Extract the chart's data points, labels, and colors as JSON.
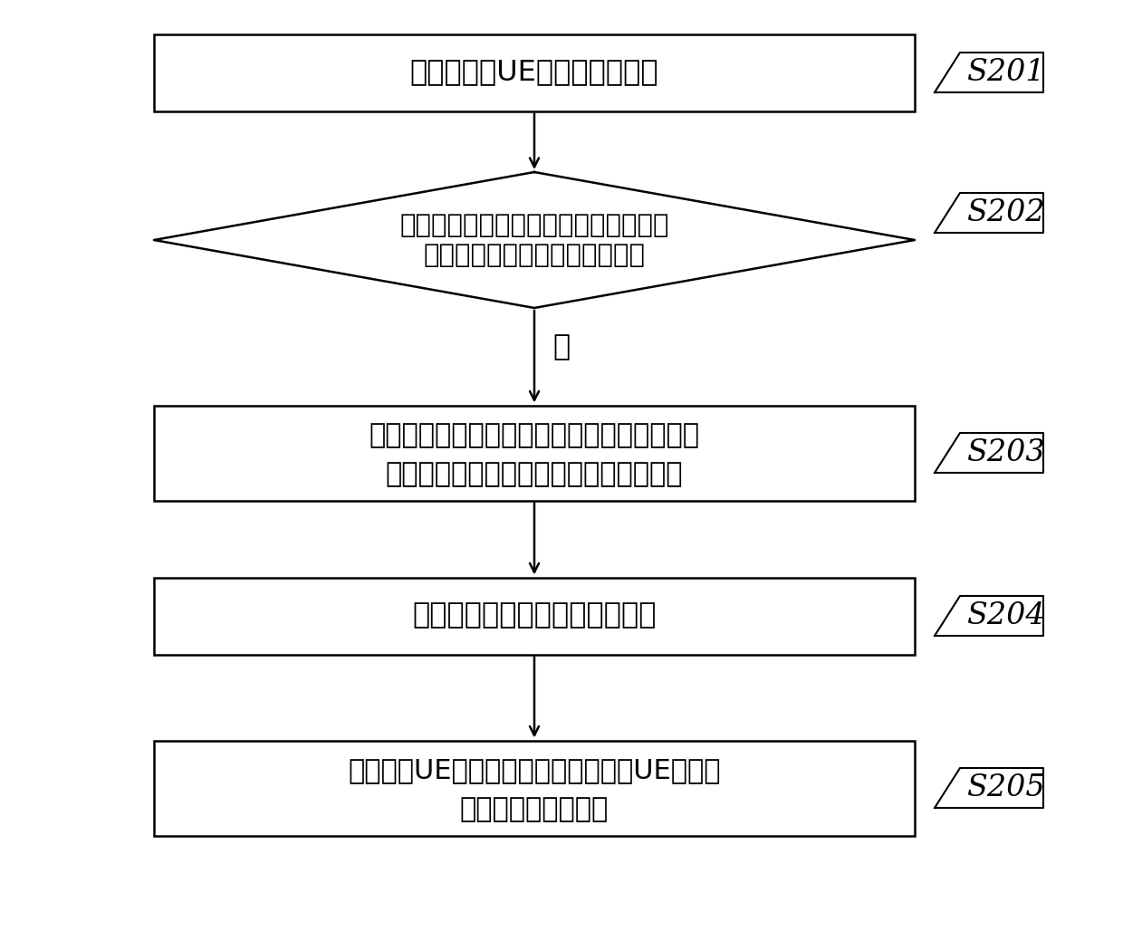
{
  "bg_color": "#ffffff",
  "line_color": "#000000",
  "font_color": "#000000",
  "steps": [
    {
      "id": "S201",
      "type": "rect",
      "line1": "微基站接收UE上报的测量信息",
      "line2": ""
    },
    {
      "id": "S202",
      "type": "diamond",
      "line1": "微基站判断实际测量信息集合中是否存",
      "line2": "在实际测量信息与测量信息匹配"
    },
    {
      "id": "S203",
      "type": "rect",
      "line1": "微基站根据测量信息，或与测量信息匹配的实",
      "line2": "际测量信息，从邻近小区中确定目标小区"
    },
    {
      "id": "S204",
      "type": "rect",
      "line1": "微基站与目标基站进行切换协商",
      "line2": ""
    },
    {
      "id": "S205",
      "type": "rect",
      "line1": "微基站向UE发送小区切换命令，使得UE从服务",
      "line2": "小区切换至目标小区"
    }
  ],
  "yes_label": "是"
}
